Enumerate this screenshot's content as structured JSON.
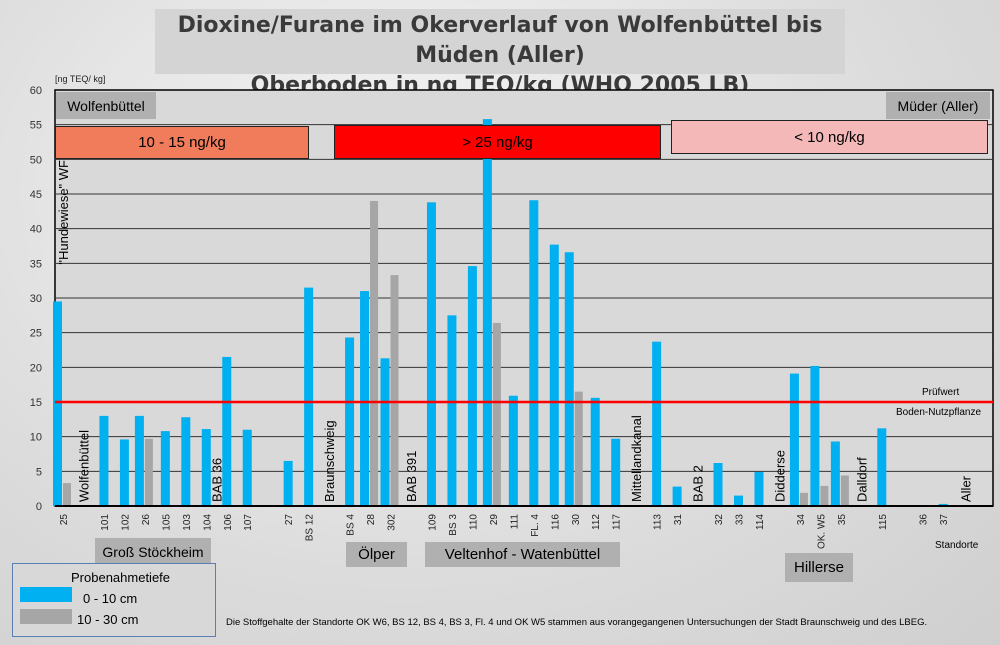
{
  "title_line1": "Dioxine/Furane im Okerverlauf von Wolfenbüttel bis Müden (Aller)",
  "title_line2": "Oberboden in ng TEQ/kg (WHO 2005 LB)",
  "unit_label": "[ng TEQ/ kg]",
  "region_top_left": "Wolfenbüttel",
  "region_top_right": "Müder (Aller)",
  "ranges": [
    {
      "label": "10 - 15 ng/kg",
      "color": "#f07c5c"
    },
    {
      "label": "> 25 ng/kg",
      "color": "#ff0000"
    },
    {
      "label": "< 10 ng/kg",
      "color": "#f4b8b8"
    }
  ],
  "bottom_regions": [
    "Groß Stöckheim",
    "Ölper",
    "Veltenhof - Watenbüttel",
    "Hillerse"
  ],
  "xaxis_label": "Standorte",
  "threshold": {
    "value": 15,
    "label1": "Prüfwert",
    "label2": "Boden-Nutzpflanze",
    "color": "#ff0000"
  },
  "legend": {
    "title": "Probenahmetiefe",
    "items": [
      {
        "label": "0 - 10 cm",
        "color": "#00b0f0"
      },
      {
        "label": "10 - 30 cm",
        "color": "#a6a6a6"
      }
    ]
  },
  "footnote": "Die Stoffgehalte der Standorte OK W6, BS 12, BS 4, BS 3, Fl. 4 und OK W5 stammen aus vorangegangenen Untersuchungen der Stadt Braunschweig und des LBEG.",
  "chart_data": {
    "type": "bar",
    "title": "Dioxine/Furane im Okerverlauf von Wolfenbüttel bis Müden (Aller) - Oberboden in ng TEQ/kg (WHO 2005 LB)",
    "ylabel": "[ng TEQ/ kg]",
    "xlabel": "Standorte",
    "ylim": [
      0,
      60
    ],
    "yticks": [
      0,
      5,
      10,
      15,
      20,
      25,
      30,
      35,
      40,
      45,
      50,
      55,
      60
    ],
    "grid": true,
    "categories": [
      "25",
      "",
      "101",
      "102",
      "26",
      "105",
      "103",
      "104",
      "106",
      "107",
      "",
      "27",
      "BS 12",
      "",
      "BS 4",
      "28",
      "302",
      "",
      "109",
      "BS 3",
      "110",
      "29",
      "111",
      "FL. 4",
      "116",
      "30",
      "112",
      "117",
      "",
      "113",
      "31",
      "",
      "32",
      "33",
      "114",
      "",
      "34",
      "OK. W5",
      "35",
      "",
      "115",
      "",
      "36",
      "37",
      ""
    ],
    "series": [
      {
        "name": "0 - 10 cm",
        "values": [
          29.5,
          null,
          13.0,
          9.6,
          13.0,
          10.8,
          12.8,
          11.1,
          21.5,
          11.0,
          null,
          6.5,
          31.5,
          null,
          24.3,
          31.0,
          21.3,
          null,
          43.8,
          27.5,
          34.6,
          55.8,
          15.9,
          44.1,
          37.7,
          36.6,
          15.6,
          9.7,
          null,
          23.7,
          2.8,
          null,
          6.2,
          1.5,
          4.9,
          null,
          19.1,
          20.2,
          9.3,
          null,
          11.2,
          null,
          0,
          0.3,
          null
        ]
      },
      {
        "name": "10 - 30 cm",
        "values": [
          3.3,
          null,
          null,
          null,
          9.7,
          null,
          null,
          null,
          null,
          null,
          null,
          null,
          null,
          null,
          null,
          44.0,
          33.3,
          null,
          null,
          null,
          null,
          26.4,
          null,
          null,
          null,
          16.5,
          null,
          null,
          null,
          null,
          null,
          null,
          null,
          null,
          null,
          null,
          1.9,
          2.9,
          4.4,
          null,
          null,
          null,
          null,
          null,
          null
        ]
      }
    ],
    "annotations": [
      {
        "at": 0,
        "text": "\"Hundewiese\" WF",
        "anchor": "top"
      },
      {
        "at": 1,
        "text": "Wolfenbüttel"
      },
      {
        "at": 7.5,
        "text": "BAB 36"
      },
      {
        "at": 13,
        "text": "Braunschweig"
      },
      {
        "at": 17,
        "text": "BAB 391"
      },
      {
        "at": 28,
        "text": "Mittellandkanal"
      },
      {
        "at": 31,
        "text": "BAB 2"
      },
      {
        "at": 35,
        "text": "Didderse"
      },
      {
        "at": 39,
        "text": "Dalldorf"
      },
      {
        "at": 44.1,
        "text": "Aller"
      }
    ]
  }
}
